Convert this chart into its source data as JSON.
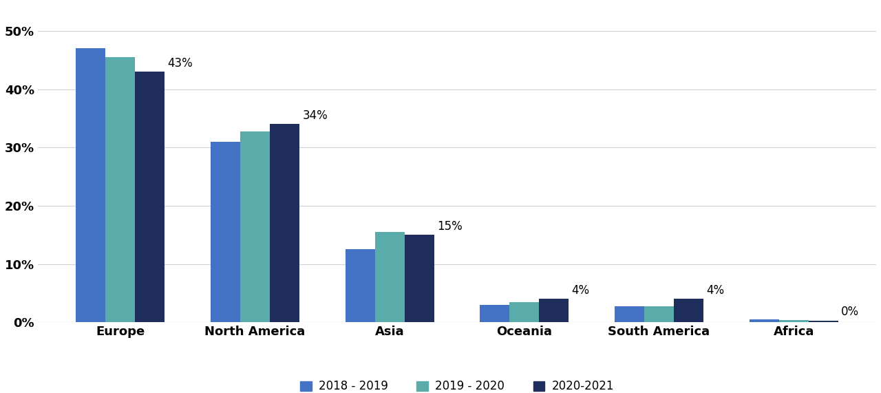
{
  "categories": [
    "Europe",
    "North America",
    "Asia",
    "Oceania",
    "South America",
    "Africa"
  ],
  "series": {
    "2018 - 2019": [
      0.47,
      0.31,
      0.125,
      0.03,
      0.027,
      0.005
    ],
    "2019 - 2020": [
      0.455,
      0.328,
      0.155,
      0.034,
      0.028,
      0.004
    ],
    "2020-2021": [
      0.43,
      0.34,
      0.15,
      0.04,
      0.04,
      0.003
    ]
  },
  "labels_2021": [
    "43%",
    "34%",
    "15%",
    "4%",
    "4%",
    "0%"
  ],
  "colors": {
    "2018 - 2019": "#4472c4",
    "2019 - 2020": "#5aacaa",
    "2020-2021": "#1f2d5c"
  },
  "legend_order": [
    "2018 - 2019",
    "2019 - 2020",
    "2020-2021"
  ],
  "ylim": [
    0,
    0.545
  ],
  "yticks": [
    0.0,
    0.1,
    0.2,
    0.3,
    0.4,
    0.5
  ],
  "ytick_labels": [
    "0%",
    "10%",
    "20%",
    "30%",
    "40%",
    "50%"
  ],
  "background_color": "#ffffff",
  "grid_color": "#d0d0d0",
  "bar_width": 0.22,
  "label_fontsize": 13,
  "tick_fontsize": 13,
  "legend_fontsize": 12,
  "annotation_fontsize": 12,
  "annotation_color": "#000000",
  "tick_color": "#000000"
}
